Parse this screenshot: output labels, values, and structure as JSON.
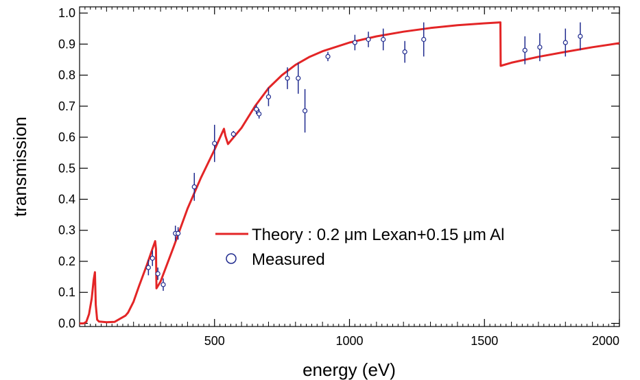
{
  "chart_data": {
    "type": "line",
    "xlabel": "energy (eV)",
    "ylabel": "transmission",
    "xlim": [
      0,
      2000
    ],
    "ylim": [
      -0.01,
      1.02
    ],
    "x_ticks": [
      500,
      1000,
      1500,
      2000
    ],
    "x_tick_labels": [
      "500",
      "1000",
      "1500",
      "2000"
    ],
    "y_ticks": [
      0.0,
      0.1,
      0.2,
      0.3,
      0.4,
      0.5,
      0.6,
      0.7,
      0.8,
      0.9,
      1.0
    ],
    "y_tick_labels": [
      "0.0",
      "0.1",
      "0.2",
      "0.3",
      "0.4",
      "0.5",
      "0.6",
      "0.7",
      "0.8",
      "0.9",
      "1.0"
    ],
    "grid": false,
    "legend_position": "center-right",
    "series": [
      {
        "name": "Theory : 0.2 μm Lexan+0.15 μm Al",
        "type": "line",
        "color": "#e32526",
        "x": [
          0,
          15,
          25,
          35,
          45,
          52,
          57,
          60,
          65,
          72,
          100,
          130,
          150,
          170,
          180,
          200,
          220,
          250,
          270,
          280,
          283,
          285,
          300,
          350,
          400,
          450,
          500,
          535,
          540,
          550,
          600,
          650,
          700,
          750,
          800,
          850,
          900,
          1000,
          1100,
          1200,
          1300,
          1400,
          1500,
          1559,
          1560,
          1600,
          1700,
          1800,
          1900,
          2000
        ],
        "y": [
          0.0,
          0.0,
          0.005,
          0.03,
          0.08,
          0.14,
          0.165,
          0.06,
          0.012,
          0.006,
          0.004,
          0.005,
          0.015,
          0.025,
          0.035,
          0.07,
          0.12,
          0.19,
          0.24,
          0.265,
          0.24,
          0.113,
          0.135,
          0.25,
          0.37,
          0.47,
          0.56,
          0.627,
          0.605,
          0.578,
          0.63,
          0.7,
          0.758,
          0.8,
          0.833,
          0.858,
          0.877,
          0.905,
          0.925,
          0.94,
          0.952,
          0.961,
          0.967,
          0.97,
          0.83,
          0.84,
          0.859,
          0.875,
          0.89,
          0.903
        ]
      },
      {
        "name": "Measured",
        "type": "scatter",
        "color": "#1f2a8e",
        "points": [
          {
            "x": 255,
            "y": 0.18,
            "err": 0.025
          },
          {
            "x": 270,
            "y": 0.21,
            "err": 0.025
          },
          {
            "x": 290,
            "y": 0.16,
            "err": 0.02
          },
          {
            "x": 310,
            "y": 0.125,
            "err": 0.02
          },
          {
            "x": 355,
            "y": 0.29,
            "err": 0.025
          },
          {
            "x": 365,
            "y": 0.29,
            "err": 0.02
          },
          {
            "x": 425,
            "y": 0.44,
            "err": 0.045
          },
          {
            "x": 500,
            "y": 0.58,
            "err": 0.06
          },
          {
            "x": 570,
            "y": 0.61,
            "err": 0.01
          },
          {
            "x": 655,
            "y": 0.69,
            "err": 0.015
          },
          {
            "x": 665,
            "y": 0.675,
            "err": 0.015
          },
          {
            "x": 700,
            "y": 0.73,
            "err": 0.03
          },
          {
            "x": 770,
            "y": 0.79,
            "err": 0.035
          },
          {
            "x": 810,
            "y": 0.79,
            "err": 0.05
          },
          {
            "x": 835,
            "y": 0.685,
            "err": 0.07
          },
          {
            "x": 920,
            "y": 0.86,
            "err": 0.015
          },
          {
            "x": 1020,
            "y": 0.905,
            "err": 0.025
          },
          {
            "x": 1070,
            "y": 0.915,
            "err": 0.025
          },
          {
            "x": 1125,
            "y": 0.915,
            "err": 0.035
          },
          {
            "x": 1205,
            "y": 0.875,
            "err": 0.035
          },
          {
            "x": 1275,
            "y": 0.915,
            "err": 0.055
          },
          {
            "x": 1650,
            "y": 0.88,
            "err": 0.045
          },
          {
            "x": 1705,
            "y": 0.89,
            "err": 0.045
          },
          {
            "x": 1800,
            "y": 0.905,
            "err": 0.045
          },
          {
            "x": 1855,
            "y": 0.925,
            "err": 0.045
          }
        ]
      }
    ]
  }
}
